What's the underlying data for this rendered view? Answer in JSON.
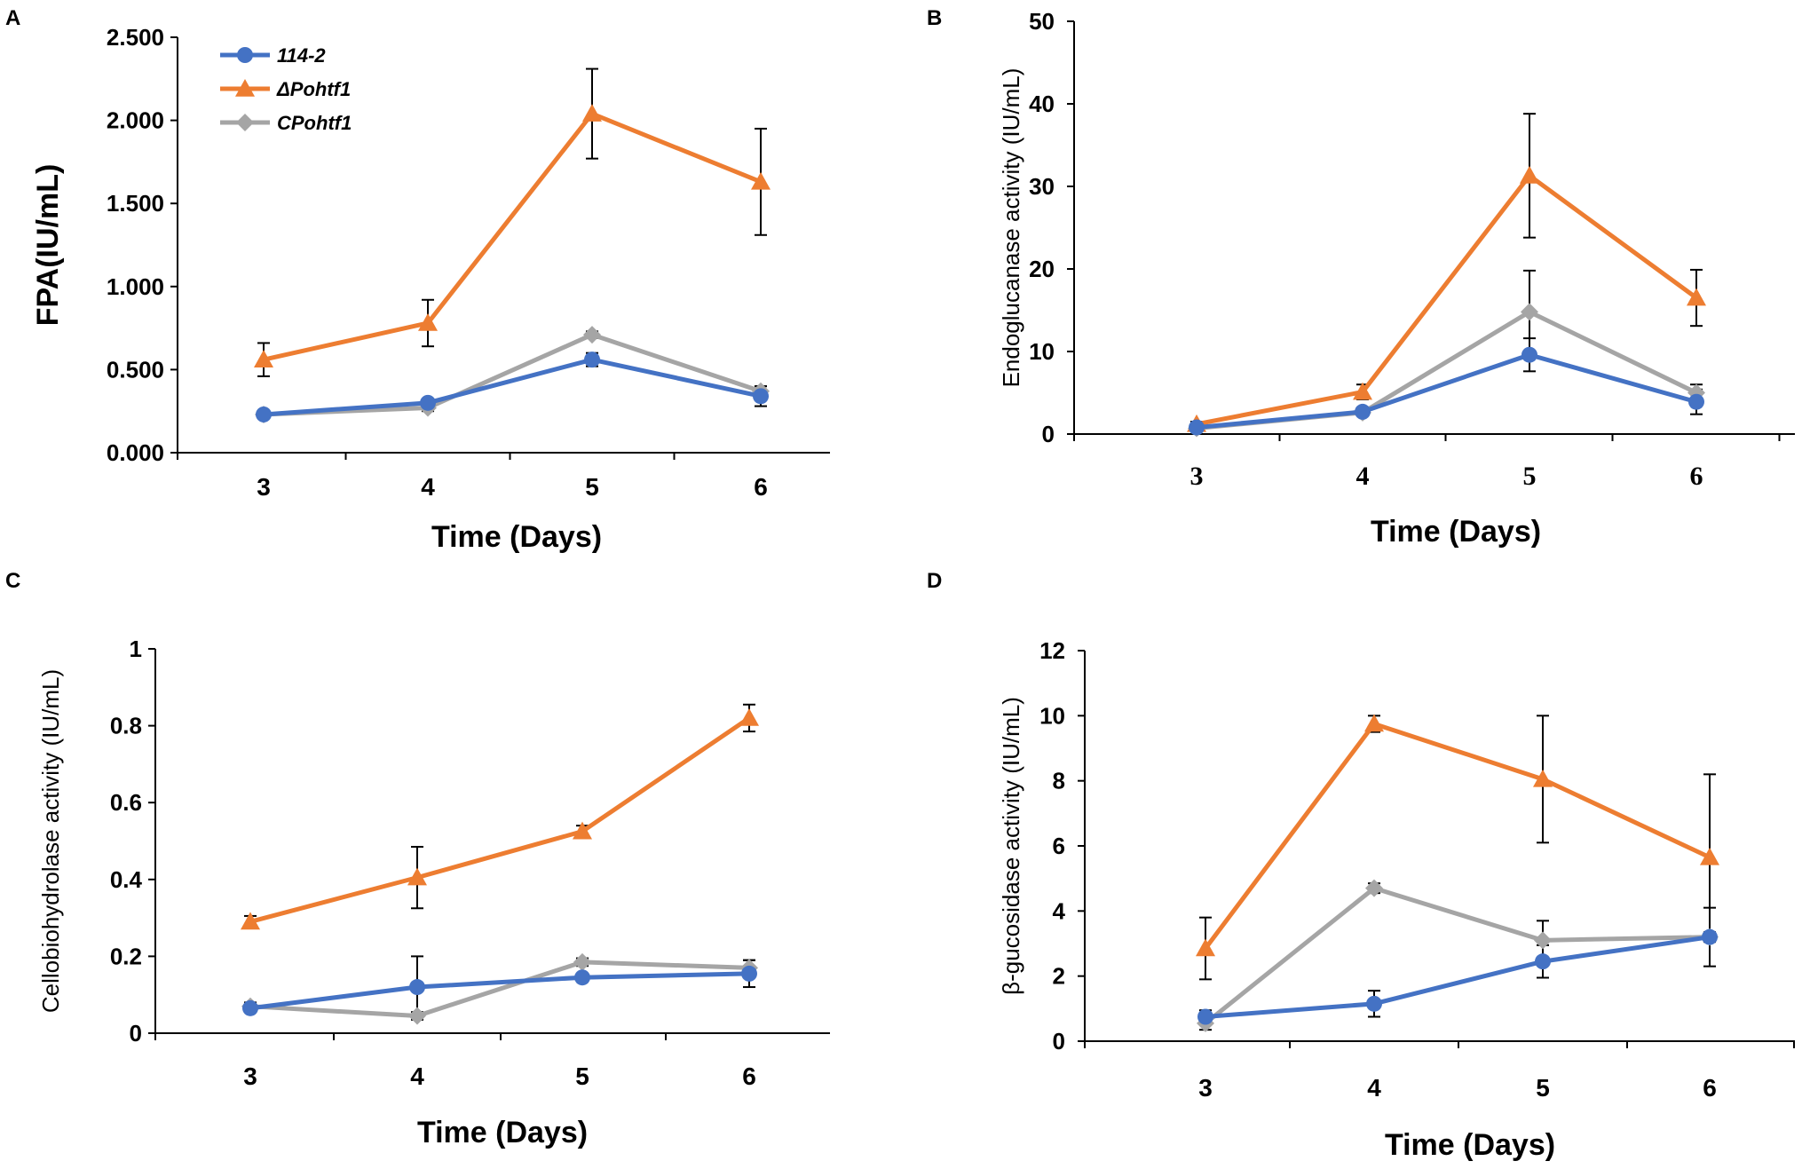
{
  "chart_data": [
    {
      "panel": "A",
      "type": "line",
      "title": "",
      "xlabel": "Time (Days)",
      "ylabel": "FPA(IU/mL)",
      "categories": [
        "3",
        "4",
        "5",
        "6"
      ],
      "ylim": [
        0,
        2.5
      ],
      "yticks": [
        "0.000",
        "0.500",
        "1.000",
        "1.500",
        "2.000",
        "2.500"
      ],
      "ytick_values": [
        0,
        0.5,
        1.0,
        1.5,
        2.0,
        2.5
      ],
      "legend": true,
      "series": [
        {
          "name": "114-2",
          "color": "#4472C4",
          "marker": "circle",
          "values": [
            0.23,
            0.3,
            0.56,
            0.34
          ],
          "errors": [
            0.02,
            0.02,
            0.04,
            0.06
          ]
        },
        {
          "name": "ΔPohtf1",
          "color": "#ED7D31",
          "marker": "triangle",
          "values": [
            0.56,
            0.78,
            2.04,
            1.63
          ],
          "errors": [
            0.1,
            0.14,
            0.27,
            0.32
          ]
        },
        {
          "name": "CPohtf1",
          "color": "#A5A5A5",
          "marker": "diamond",
          "values": [
            0.23,
            0.27,
            0.71,
            0.37
          ],
          "errors": [
            0.02,
            0.02,
            0.02,
            0.03
          ]
        }
      ]
    },
    {
      "panel": "B",
      "type": "line",
      "title": "",
      "xlabel": "Time (Days)",
      "ylabel": "Endoglucanase activity (IU/mL)",
      "categories": [
        "3",
        "4",
        "5",
        "6"
      ],
      "ylim": [
        0,
        50
      ],
      "yticks": [
        "0",
        "10",
        "20",
        "30",
        "40",
        "50"
      ],
      "ytick_values": [
        0,
        10,
        20,
        30,
        40,
        50
      ],
      "legend": false,
      "series": [
        {
          "name": "114-2",
          "color": "#4472C4",
          "marker": "circle",
          "values": [
            0.8,
            2.7,
            9.6,
            3.9
          ],
          "errors": [
            0.2,
            0.3,
            2.0,
            1.5
          ]
        },
        {
          "name": "ΔPohtf1",
          "color": "#ED7D31",
          "marker": "triangle",
          "values": [
            1.2,
            5.1,
            31.3,
            16.5
          ],
          "errors": [
            0.3,
            0.9,
            7.5,
            3.4
          ]
        },
        {
          "name": "CPohtf1",
          "color": "#A5A5A5",
          "marker": "diamond",
          "values": [
            0.7,
            2.6,
            14.8,
            5.0
          ],
          "errors": [
            0.2,
            0.3,
            5.0,
            1.0
          ]
        }
      ]
    },
    {
      "panel": "C",
      "type": "line",
      "title": "",
      "xlabel": "Time (Days)",
      "ylabel": "Cellobiohydrolase activity (IU/mL)",
      "categories": [
        "3",
        "4",
        "5",
        "6"
      ],
      "ylim": [
        0,
        1
      ],
      "yticks": [
        "0",
        "0.2",
        "0.4",
        "0.6",
        "0.8",
        "1"
      ],
      "ytick_values": [
        0,
        0.2,
        0.4,
        0.6,
        0.8,
        1.0
      ],
      "legend": false,
      "series": [
        {
          "name": "114-2",
          "color": "#4472C4",
          "marker": "circle",
          "values": [
            0.065,
            0.12,
            0.145,
            0.155
          ],
          "errors": [
            0.01,
            0.08,
            0.01,
            0.035
          ]
        },
        {
          "name": "ΔPohtf1",
          "color": "#ED7D31",
          "marker": "triangle",
          "values": [
            0.29,
            0.405,
            0.525,
            0.82
          ],
          "errors": [
            0.015,
            0.08,
            0.015,
            0.035
          ]
        },
        {
          "name": "CPohtf1",
          "color": "#A5A5A5",
          "marker": "diamond",
          "values": [
            0.07,
            0.045,
            0.185,
            0.17
          ],
          "errors": [
            0.01,
            0.01,
            0.01,
            0.02
          ]
        }
      ]
    },
    {
      "panel": "D",
      "type": "line",
      "title": "",
      "xlabel": "Time (Days)",
      "ylabel": "β-gucosidase activity (IU/mL)",
      "categories": [
        "3",
        "4",
        "5",
        "6"
      ],
      "ylim": [
        0,
        12
      ],
      "yticks": [
        "0",
        "2",
        "4",
        "6",
        "8",
        "10",
        "12"
      ],
      "ytick_values": [
        0,
        2,
        4,
        6,
        8,
        10,
        12
      ],
      "legend": false,
      "series": [
        {
          "name": "114-2",
          "color": "#4472C4",
          "marker": "circle",
          "values": [
            0.75,
            1.15,
            2.45,
            3.2
          ],
          "errors": [
            0.2,
            0.4,
            0.5,
            0.9
          ]
        },
        {
          "name": "ΔPohtf1",
          "color": "#ED7D31",
          "marker": "triangle",
          "values": [
            2.85,
            9.75,
            8.05,
            5.65
          ],
          "errors": [
            0.95,
            0.25,
            1.95,
            2.55
          ]
        },
        {
          "name": "CPohtf1",
          "color": "#A5A5A5",
          "marker": "diamond",
          "values": [
            0.55,
            4.7,
            3.1,
            3.2
          ],
          "errors": [
            0.2,
            0.15,
            0.6,
            0.15
          ]
        }
      ]
    }
  ]
}
